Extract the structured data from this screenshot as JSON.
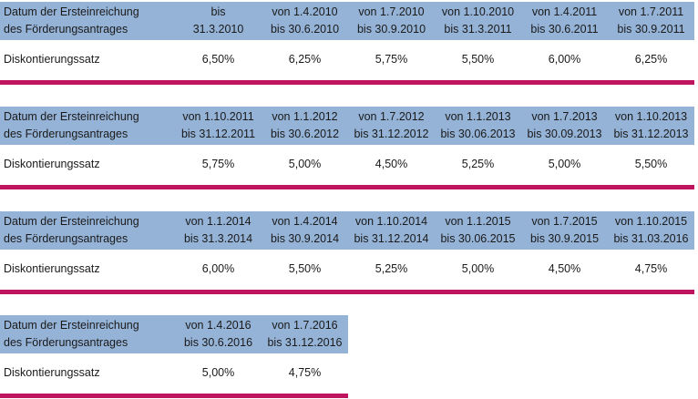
{
  "row_label_header": [
    "Datum der Ersteinreichung",
    "des Förderungsantrages"
  ],
  "row_label_rate": "Diskontierungssatz",
  "accent_color": "#c0135f",
  "header_fill": "#95b3d7",
  "blocks": [
    {
      "periods": [
        [
          "bis",
          "31.3.2010"
        ],
        [
          "von 1.4.2010",
          "bis 30.6.2010"
        ],
        [
          "von 1.7.2010",
          "bis 30.9.2010"
        ],
        [
          "von 1.10.2010",
          "bis 31.3.2011"
        ],
        [
          "von 1.4.2011",
          "bis 30.6.2011"
        ],
        [
          "von 1.7.2011",
          "bis 30.9.2011"
        ]
      ],
      "rates": [
        "6,50%",
        "6,25%",
        "5,75%",
        "5,50%",
        "6,00%",
        "6,25%"
      ]
    },
    {
      "periods": [
        [
          "von 1.10.2011",
          "bis 31.12.2011"
        ],
        [
          "von 1.1.2012",
          "bis 30.6.2012"
        ],
        [
          "von 1.7.2012",
          "bis 31.12.2012"
        ],
        [
          "von 1.1.2013",
          "bis 30.06.2013"
        ],
        [
          "von 1.7.2013",
          "bis 30.09.2013"
        ],
        [
          "von 1.10.2013",
          "bis 31.12.2013"
        ]
      ],
      "rates": [
        "5,75%",
        "5,00%",
        "4,50%",
        "5,25%",
        "5,00%",
        "5,50%"
      ]
    },
    {
      "periods": [
        [
          "von 1.1.2014",
          "bis 31.3.2014"
        ],
        [
          "von 1.4.2014",
          "bis 30.9.2014"
        ],
        [
          "von 1.10.2014",
          "bis 31.12.2014"
        ],
        [
          "von 1.1.2015",
          "bis 30.06.2015"
        ],
        [
          "von 1.7.2015",
          "bis 30.9.2015"
        ],
        [
          "von 1.10.2015",
          "bis 31.03.2016"
        ]
      ],
      "rates": [
        "6,00%",
        "5,50%",
        "5,25%",
        "5,00%",
        "4,50%",
        "4,75%"
      ]
    },
    {
      "periods": [
        [
          "von 1.4.2016",
          "bis 30.6.2016"
        ],
        [
          "von 1.7.2016",
          "bis 31.12.2016"
        ]
      ],
      "rates": [
        "5,00%",
        "4,75%"
      ]
    }
  ]
}
